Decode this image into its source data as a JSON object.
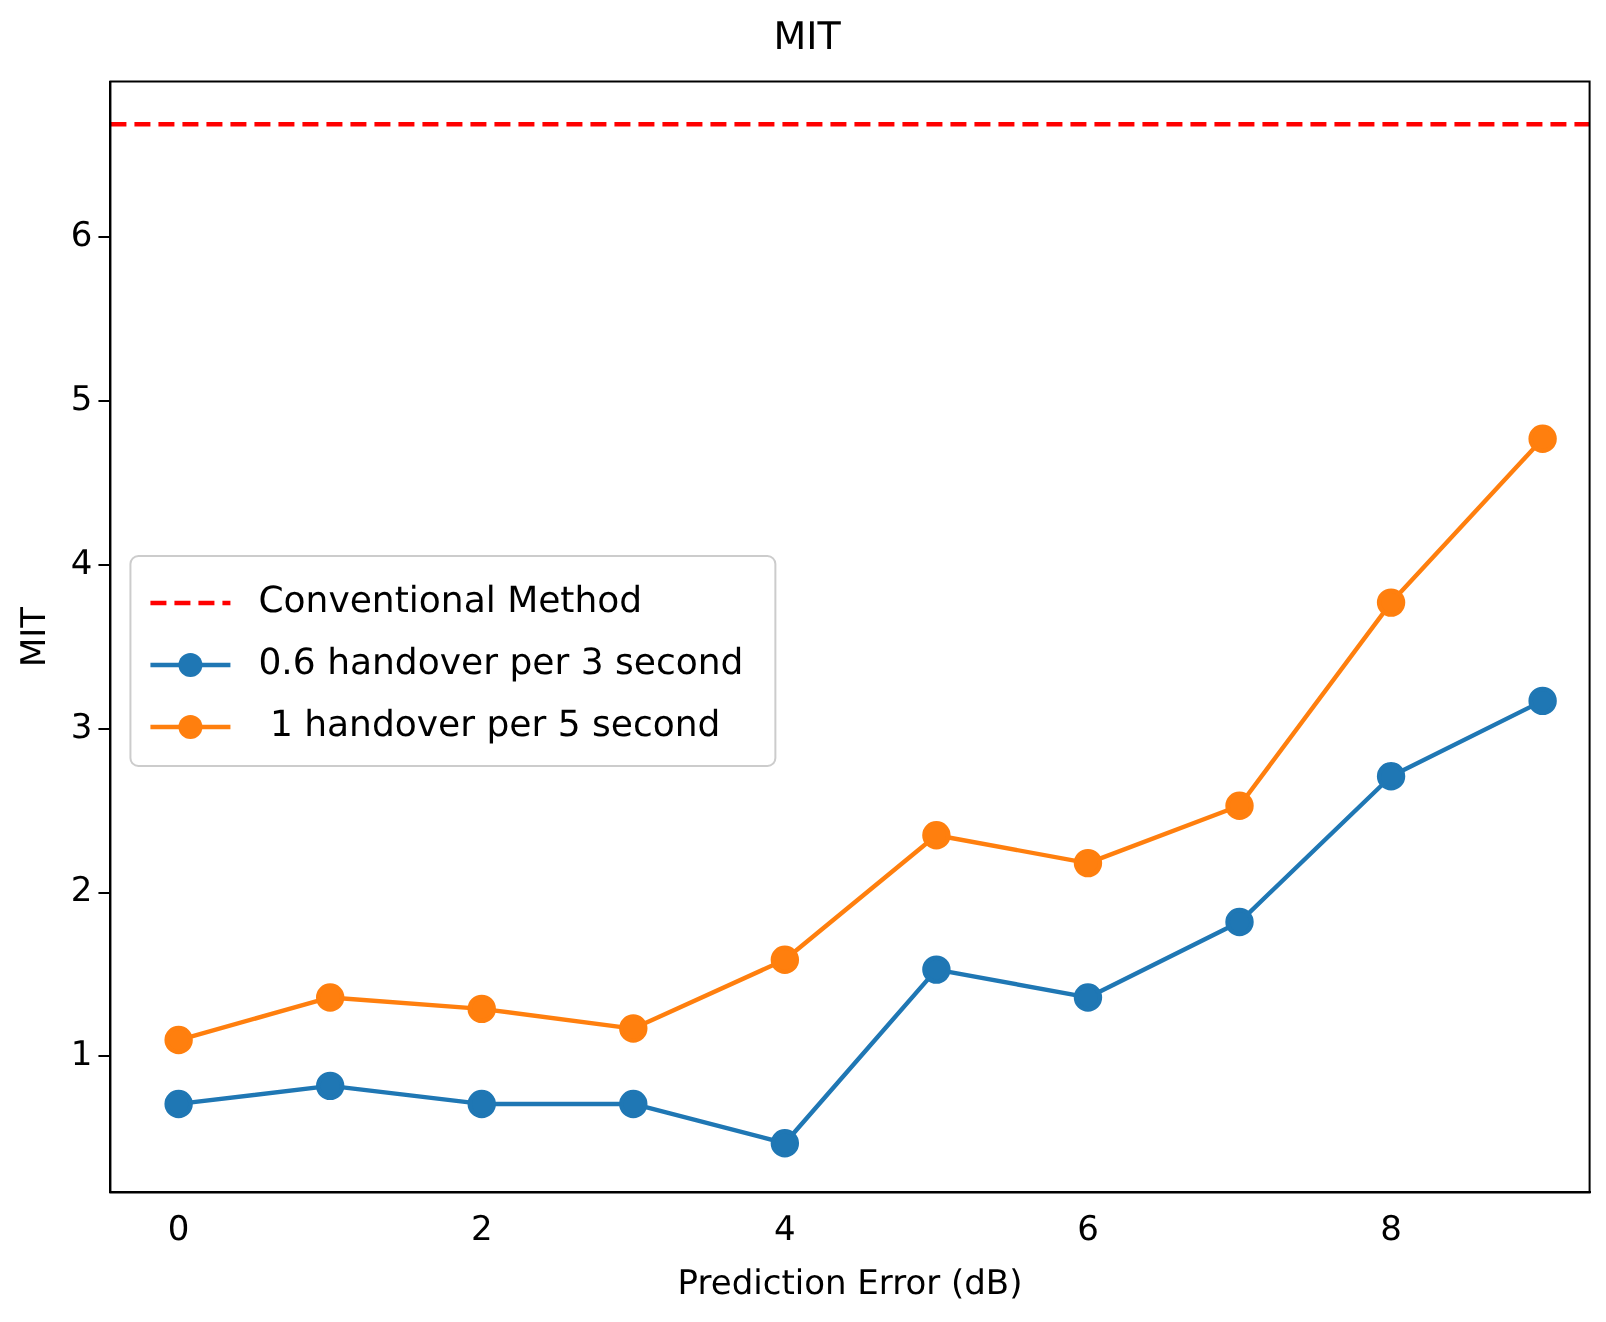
{
  "chart_data": {
    "type": "line",
    "title": "MIT",
    "xlabel": "Prediction Error (dB)",
    "ylabel": "MIT",
    "x": [
      0,
      1,
      2,
      3,
      4,
      5,
      6,
      7,
      8,
      9
    ],
    "series": [
      {
        "name": "0.6 handover per 3 second",
        "color": "#1f77b4",
        "values": [
          0.71,
          0.82,
          0.71,
          0.71,
          0.47,
          1.53,
          1.36,
          1.82,
          2.71,
          3.17
        ]
      },
      {
        "name": " 1 handover per 5 second",
        "color": "#ff7f0e",
        "values": [
          1.1,
          1.36,
          1.29,
          1.17,
          1.59,
          2.35,
          2.18,
          2.53,
          3.77,
          4.77
        ]
      }
    ],
    "ref_lines": [
      {
        "axis": "y",
        "value": 6.69,
        "label": "Conventional Method",
        "color": "#ff0000",
        "line_style": "dashed"
      }
    ],
    "xlim": [
      -0.45,
      9.31
    ],
    "xticks": [
      0,
      2,
      4,
      6,
      8
    ],
    "ylim": [
      0.17,
      6.95
    ],
    "yticks": [
      1,
      2,
      3,
      4,
      5,
      6
    ],
    "grid": false,
    "legend": "center left",
    "marker": "circle",
    "line_style": "solid"
  }
}
